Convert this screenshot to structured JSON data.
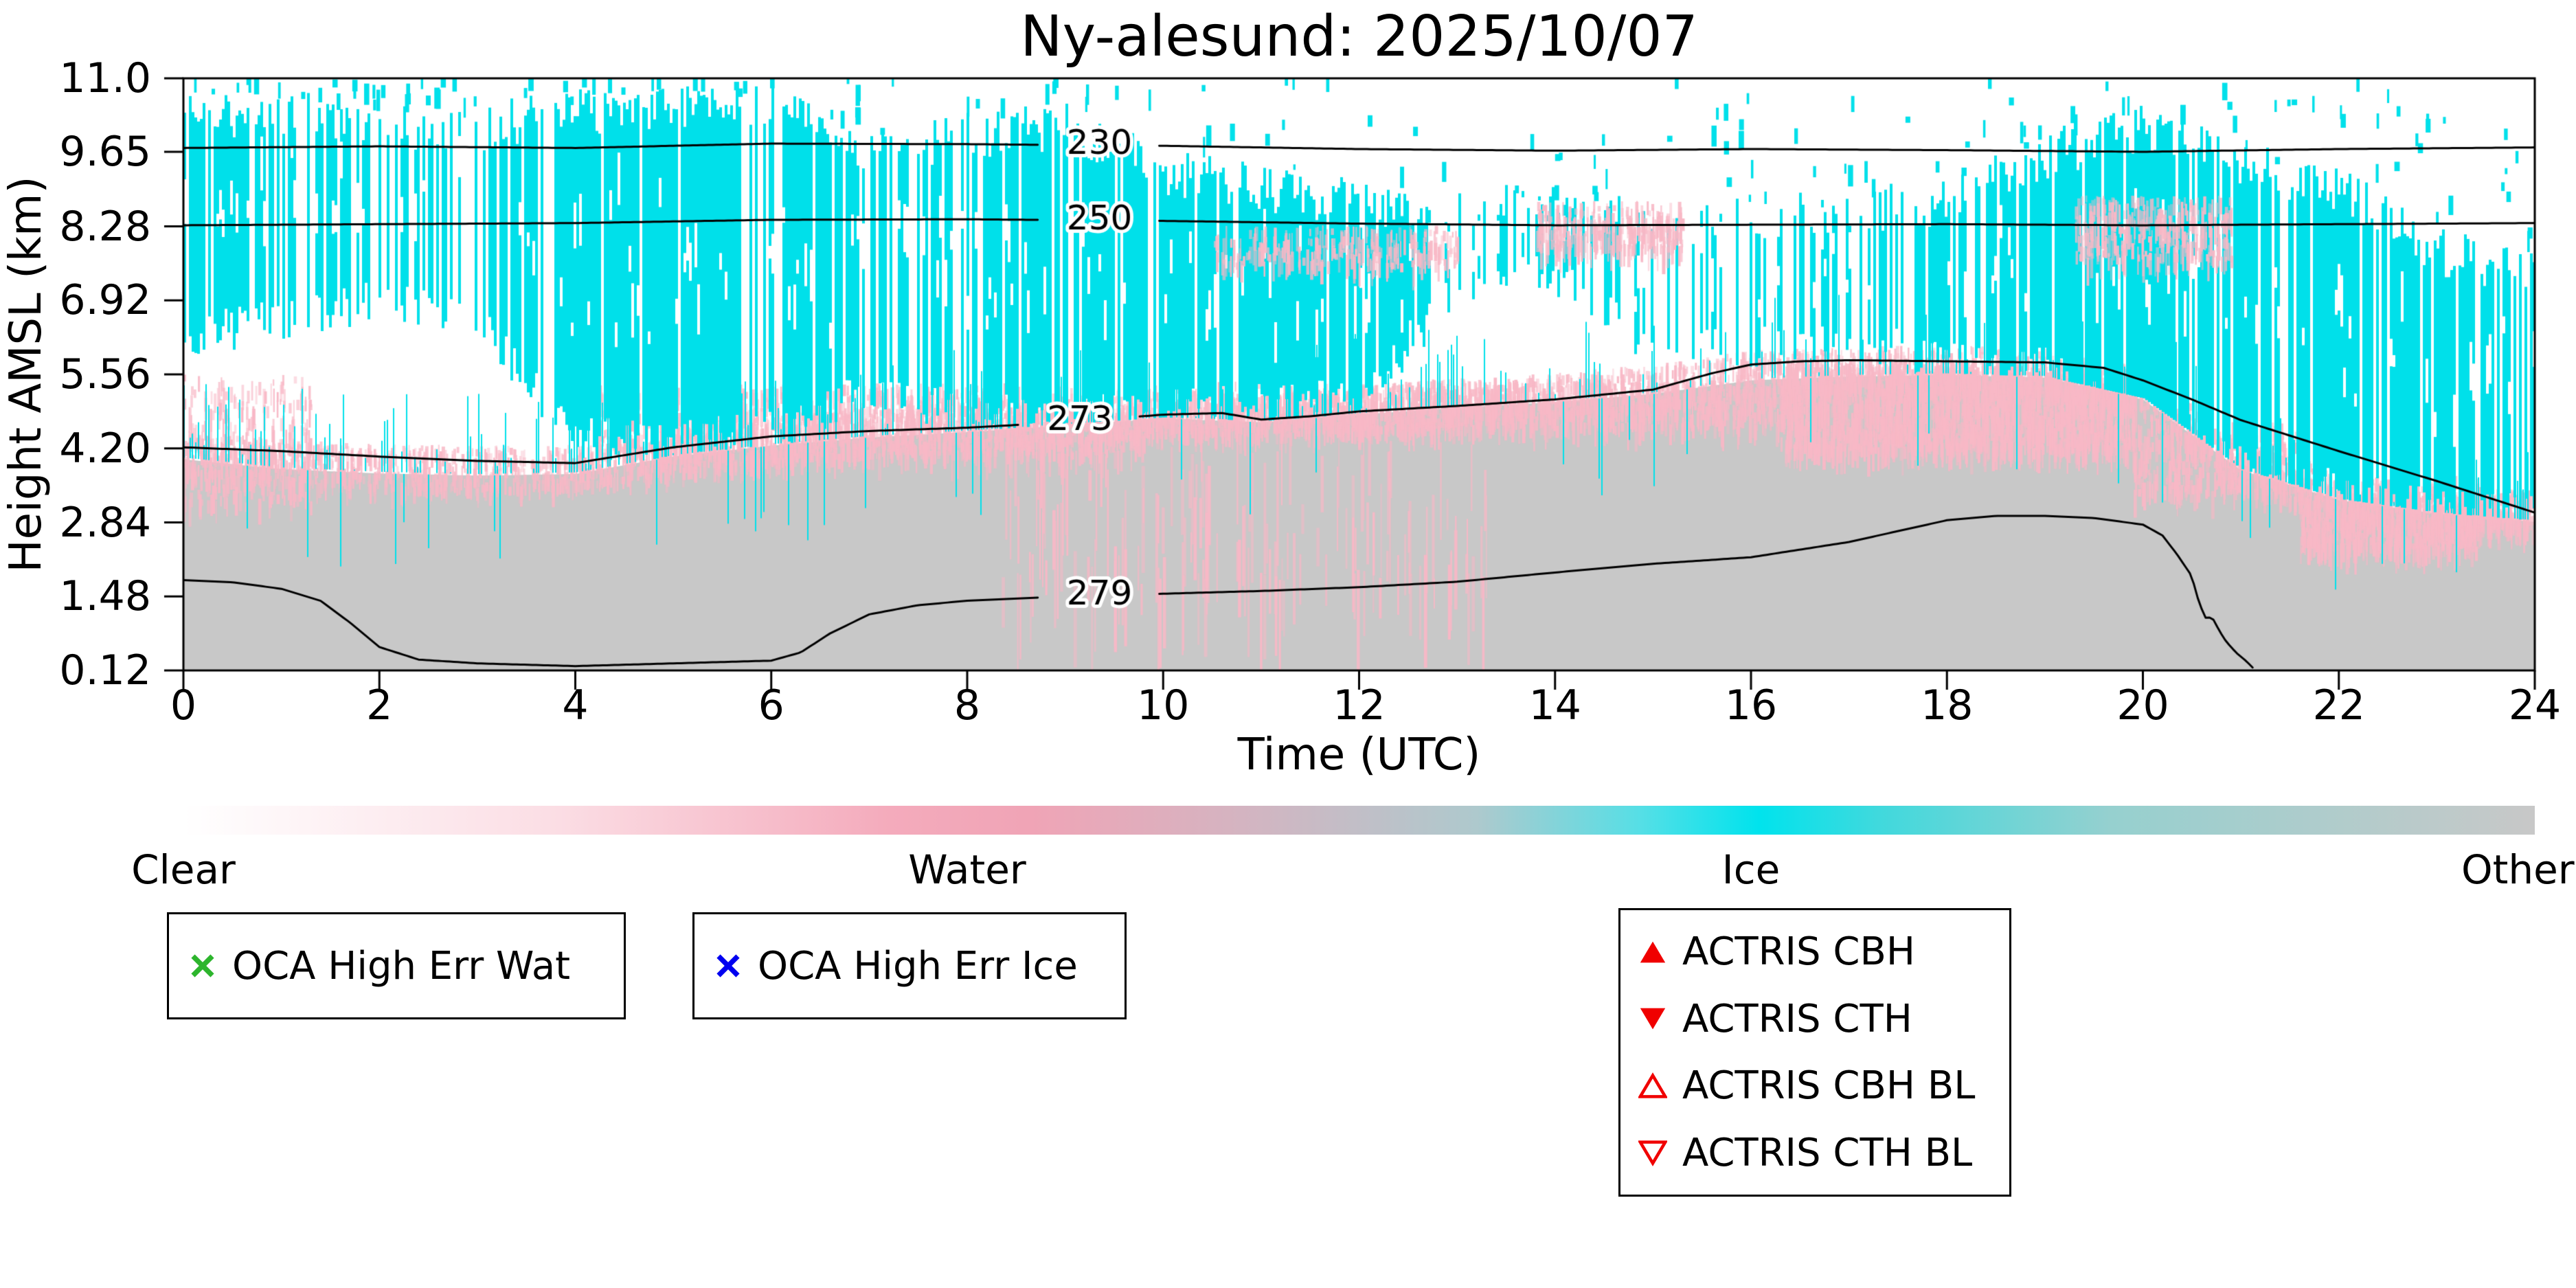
{
  "title": "Ny-alesund: 2025/10/07",
  "axes": {
    "xlabel": "Time (UTC)",
    "ylabel": "Height AMSL (km)",
    "xlim": [
      0,
      24
    ],
    "ylim": [
      0.12,
      11.0
    ],
    "xticks": [
      0,
      2,
      4,
      6,
      8,
      10,
      12,
      14,
      16,
      18,
      20,
      22,
      24
    ],
    "yticks": [
      11.0,
      9.65,
      8.28,
      6.92,
      5.56,
      4.2,
      2.84,
      1.48,
      0.12
    ],
    "ytick_labels": [
      "11.0",
      "9.65",
      "8.28",
      "6.92",
      "5.56",
      "4.20",
      "2.84",
      "1.48",
      "0.12"
    ]
  },
  "chart_data": {
    "type": "heatmap",
    "xlim": [
      0,
      24
    ],
    "ylim": [
      0.12,
      11.0
    ],
    "categories": [
      "Clear",
      "Water",
      "Ice",
      "Other"
    ],
    "colors": {
      "clear": "#ffffff",
      "water": "#f8b8c6",
      "ice": "#00e0ea",
      "other": "#c8c8c8"
    },
    "other_top_km": [
      4.0,
      3.82,
      3.74,
      3.7,
      3.73,
      4.05,
      4.25,
      4.4,
      4.5,
      4.62,
      4.75,
      4.68,
      4.82,
      4.95,
      5.05,
      5.2,
      5.45,
      5.52,
      5.55,
      5.5,
      5.1,
      3.8,
      3.25,
      3.0,
      2.85
    ],
    "ice": {
      "top_km": [
        10.3,
        10.4,
        10.15,
        10.1,
        10.35,
        10.55,
        10.45,
        9.7,
        9.95,
        10.1,
        9.3,
        8.95,
        8.7,
        8.6,
        8.6,
        8.35,
        8.45,
        8.6,
        8.7,
        9.6,
        10.1,
        9.4,
        9.0,
        7.8,
        7.4
      ],
      "base_km": [
        6.2,
        6.6,
        6.9,
        6.5,
        4.4,
        4.3,
        4.55,
        5.3,
        4.85,
        4.75,
        4.9,
        5.0,
        5.1,
        7.2,
        7.4,
        6.0,
        6.1,
        6.2,
        5.8,
        5.65,
        4.4,
        3.9,
        3.4,
        3.1,
        2.95
      ],
      "coverage": [
        0.85,
        0.55,
        0.5,
        0.55,
        0.9,
        0.95,
        0.75,
        0.55,
        0.7,
        0.8,
        0.88,
        0.9,
        0.88,
        0.55,
        0.45,
        0.3,
        0.35,
        0.45,
        0.6,
        0.8,
        0.95,
        0.9,
        0.85,
        0.75,
        0.7
      ]
    },
    "water_patches": [
      {
        "t0": 0,
        "t1": 1.3,
        "k0": 3.2,
        "k1": 5.6,
        "d": 0.5
      },
      {
        "t0": 4.2,
        "t1": 9.8,
        "k0": 4.1,
        "k1": 5.4,
        "d": 0.55
      },
      {
        "t0": 9.8,
        "t1": 16.3,
        "k0": 4.6,
        "k1": 5.45,
        "d": 0.4
      },
      {
        "t0": 16.3,
        "t1": 19.9,
        "k0": 4.2,
        "k1": 5.8,
        "d": 1.6
      },
      {
        "t0": 19.9,
        "t1": 21.6,
        "k0": 3.4,
        "k1": 4.7,
        "d": 0.5
      },
      {
        "t0": 21.6,
        "t1": 23.4,
        "k0": 2.35,
        "k1": 3.7,
        "d": 1.1
      },
      {
        "t0": 23.2,
        "t1": 24,
        "k0": 2.85,
        "k1": 3.5,
        "d": 0.6
      },
      {
        "t0": 8.3,
        "t1": 13.3,
        "k0": 1.7,
        "k1": 4.6,
        "d": 0.08,
        "hair": true
      },
      {
        "t0": 13.8,
        "t1": 15.3,
        "k0": 7.9,
        "k1": 8.75,
        "d": 0.5,
        "z": 2
      },
      {
        "t0": 19.3,
        "t1": 20.9,
        "k0": 7.7,
        "k1": 8.85,
        "d": 0.55,
        "z": 2
      },
      {
        "t0": 10.5,
        "t1": 13.0,
        "k0": 7.6,
        "k1": 8.3,
        "d": 0.25,
        "z": 2
      }
    ],
    "contours": [
      {
        "label": "230",
        "label_t": 9.35,
        "points": [
          [
            0,
            9.72
          ],
          [
            2,
            9.75
          ],
          [
            4,
            9.72
          ],
          [
            6,
            9.8
          ],
          [
            8,
            9.79
          ],
          [
            10,
            9.76
          ],
          [
            12,
            9.7
          ],
          [
            14,
            9.67
          ],
          [
            16,
            9.7
          ],
          [
            18,
            9.68
          ],
          [
            20,
            9.65
          ],
          [
            22,
            9.7
          ],
          [
            24,
            9.73
          ]
        ]
      },
      {
        "label": "250",
        "label_t": 9.35,
        "points": [
          [
            0,
            8.3
          ],
          [
            2,
            8.32
          ],
          [
            4,
            8.34
          ],
          [
            6,
            8.4
          ],
          [
            8,
            8.41
          ],
          [
            10,
            8.38
          ],
          [
            12,
            8.33
          ],
          [
            14,
            8.3
          ],
          [
            16,
            8.31
          ],
          [
            18,
            8.32
          ],
          [
            20,
            8.3
          ],
          [
            22,
            8.32
          ],
          [
            24,
            8.34
          ]
        ]
      },
      {
        "label": "273",
        "label_t": 9.15,
        "points": [
          [
            0,
            4.22
          ],
          [
            1,
            4.15
          ],
          [
            2,
            4.05
          ],
          [
            3,
            3.97
          ],
          [
            4,
            3.93
          ],
          [
            5,
            4.22
          ],
          [
            6,
            4.42
          ],
          [
            7,
            4.52
          ],
          [
            8,
            4.58
          ],
          [
            9,
            4.68
          ],
          [
            10,
            4.82
          ],
          [
            10.6,
            4.85
          ],
          [
            11,
            4.73
          ],
          [
            11.5,
            4.79
          ],
          [
            12,
            4.88
          ],
          [
            13,
            4.98
          ],
          [
            14,
            5.1
          ],
          [
            15,
            5.28
          ],
          [
            15.6,
            5.58
          ],
          [
            16,
            5.74
          ],
          [
            16.5,
            5.8
          ],
          [
            17,
            5.82
          ],
          [
            18,
            5.8
          ],
          [
            19,
            5.78
          ],
          [
            19.6,
            5.68
          ],
          [
            20,
            5.45
          ],
          [
            20.5,
            5.1
          ],
          [
            21,
            4.72
          ],
          [
            22,
            4.15
          ],
          [
            23,
            3.6
          ],
          [
            24,
            3.02
          ]
        ]
      },
      {
        "label": "279",
        "label_t": 9.35,
        "points": [
          [
            0,
            1.78
          ],
          [
            0.5,
            1.74
          ],
          [
            1,
            1.62
          ],
          [
            1.4,
            1.4
          ],
          [
            1.7,
            1.0
          ],
          [
            2,
            0.55
          ],
          [
            2.4,
            0.32
          ],
          [
            3,
            0.25
          ],
          [
            4,
            0.2
          ],
          [
            5,
            0.25
          ],
          [
            6,
            0.3
          ],
          [
            6.3,
            0.45
          ],
          [
            6.6,
            0.8
          ],
          [
            7,
            1.15
          ],
          [
            7.5,
            1.32
          ],
          [
            8,
            1.4
          ],
          [
            9,
            1.48
          ],
          [
            10,
            1.53
          ],
          [
            11,
            1.58
          ],
          [
            12,
            1.65
          ],
          [
            13,
            1.75
          ],
          [
            14,
            1.92
          ],
          [
            15,
            2.08
          ],
          [
            16,
            2.2
          ],
          [
            17,
            2.48
          ],
          [
            17.6,
            2.72
          ],
          [
            18,
            2.88
          ],
          [
            18.5,
            2.96
          ],
          [
            19,
            2.96
          ],
          [
            19.5,
            2.92
          ],
          [
            20,
            2.8
          ],
          [
            20.2,
            2.6
          ],
          [
            20.35,
            2.25
          ],
          [
            20.5,
            1.85
          ],
          [
            20.55,
            1.5
          ],
          [
            20.6,
            1.25
          ],
          [
            20.65,
            1.05
          ],
          [
            20.7,
            1.12
          ],
          [
            20.78,
            0.85
          ],
          [
            20.85,
            0.65
          ],
          [
            20.95,
            0.45
          ],
          [
            21.05,
            0.3
          ],
          [
            21.15,
            0.12
          ]
        ]
      }
    ]
  },
  "colorbar": {
    "labels": [
      "Clear",
      "Water",
      "Ice",
      "Other"
    ],
    "stops": [
      [
        0,
        "#ffffff"
      ],
      [
        0.16,
        "#fbdde4"
      ],
      [
        0.3,
        "#f4abbc"
      ],
      [
        0.36,
        "#f0a4b6"
      ],
      [
        0.45,
        "#d4b4c1"
      ],
      [
        0.55,
        "#aec9cd"
      ],
      [
        0.62,
        "#55dfe6"
      ],
      [
        0.67,
        "#00e3ed"
      ],
      [
        0.72,
        "#3fd9dd"
      ],
      [
        0.82,
        "#96d0cf"
      ],
      [
        1,
        "#c8c8c8"
      ]
    ]
  },
  "legend": {
    "oca": [
      {
        "label": "OCA High Err Wat",
        "marker": "x",
        "color": "#2db52d"
      },
      {
        "label": "OCA High Err Ice",
        "marker": "x",
        "color": "#0000f0"
      }
    ],
    "actris_color": "#f00000",
    "actris": [
      {
        "label": "ACTRIS CBH",
        "marker": "triangle-up-filled"
      },
      {
        "label": "ACTRIS CTH",
        "marker": "triangle-down-filled"
      },
      {
        "label": "ACTRIS CBH BL",
        "marker": "triangle-up-open"
      },
      {
        "label": "ACTRIS CTH BL",
        "marker": "triangle-down-open"
      }
    ]
  }
}
